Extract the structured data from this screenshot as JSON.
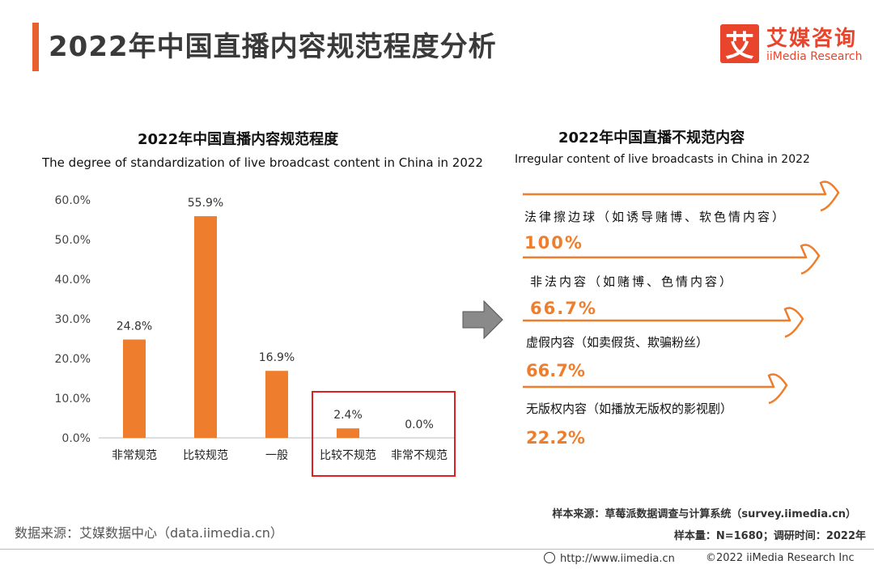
{
  "header": {
    "title": "2022年中国直播内容规范程度分析",
    "logo_mark": "艾",
    "logo_cn": "艾媒咨询",
    "logo_en": "iiMedia Research"
  },
  "left_chart": {
    "title_cn": "2022年中国直播内容规范程度",
    "title_en": "The degree of standardization of live broadcast content in China in 2022"
  },
  "chart_data": {
    "type": "bar",
    "title": "2022年中国直播内容规范程度",
    "subtitle": "The degree of standardization of live broadcast content in China in 2022",
    "categories": [
      "非常规范",
      "比较规范",
      "一般",
      "比较不规范",
      "非常不规范"
    ],
    "values": [
      24.8,
      55.9,
      16.9,
      2.4,
      0.0
    ],
    "value_labels": [
      "24.8%",
      "55.9%",
      "16.9%",
      "2.4%",
      "0.0%"
    ],
    "y_ticks": [
      "0.0%",
      "10.0%",
      "20.0%",
      "30.0%",
      "40.0%",
      "50.0%",
      "60.0%"
    ],
    "ylim": [
      0,
      60
    ],
    "bar_color": "#ee7e2e",
    "highlight": {
      "categories": [
        "比较不规范",
        "非常不规范"
      ],
      "color": "#e02020"
    },
    "xlabel": "",
    "ylabel": "",
    "grid": false
  },
  "right_panel": {
    "title_cn": "2022年中国直播不规范内容",
    "title_en": "Irregular content of live broadcasts in China in 2022",
    "items": [
      {
        "label": "法律擦边球（如诱导赌博、软色情内容）",
        "value": "100%"
      },
      {
        "label": "非法内容（如赌博、色情内容）",
        "value": "66.7%"
      },
      {
        "label": "虚假内容（如卖假货、欺骗粉丝）",
        "value": "66.7%"
      },
      {
        "label": "无版权内容（如播放无版权的影视剧）",
        "value": "22.2%"
      }
    ],
    "accent": "#ee7e2e"
  },
  "footer": {
    "data_source": "数据来源：艾媒数据中心（data.iimedia.cn）",
    "sample_source": "样本来源：草莓派数据调查与计算系统（survey.iimedia.cn）",
    "sample_info": "样本量：N=1680；调研时间：2022年",
    "url": "http://www.iimedia.cn",
    "copyright": "©2022 iiMedia Research Inc"
  }
}
